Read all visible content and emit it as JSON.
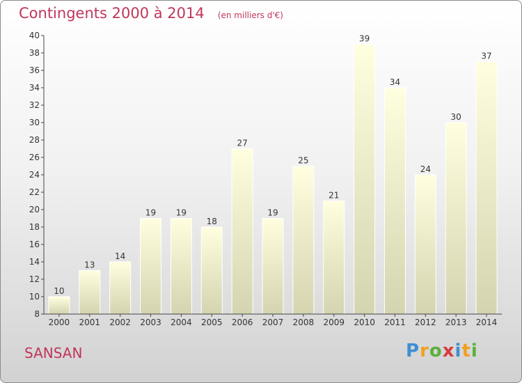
{
  "header": {
    "title": "Contingents 2000 à 2014",
    "subtitle": "(en milliers d'€)"
  },
  "footer": {
    "town": "SANSAN",
    "logo_text": "Proxiti"
  },
  "colors": {
    "title": "#c0365a",
    "bar_top": "#ffffe0",
    "bar_bottom": "#d4d4b0",
    "axis": "#444444"
  },
  "chart_data": {
    "type": "bar",
    "title": "Contingents 2000 à 2014",
    "subtitle": "(en milliers d'€)",
    "categories": [
      "2000",
      "2001",
      "2002",
      "2003",
      "2004",
      "2005",
      "2006",
      "2007",
      "2008",
      "2009",
      "2010",
      "2011",
      "2012",
      "2013",
      "2014"
    ],
    "values": [
      10,
      13,
      14,
      19,
      19,
      18,
      27,
      19,
      25,
      21,
      39,
      34,
      24,
      30,
      37
    ],
    "ylim": [
      8,
      40
    ],
    "yticks": [
      8,
      10,
      12,
      14,
      16,
      18,
      20,
      22,
      24,
      26,
      28,
      30,
      32,
      34,
      36,
      38,
      40
    ],
    "xlabel": "",
    "ylabel": "",
    "grid": false,
    "data_labels": true
  }
}
